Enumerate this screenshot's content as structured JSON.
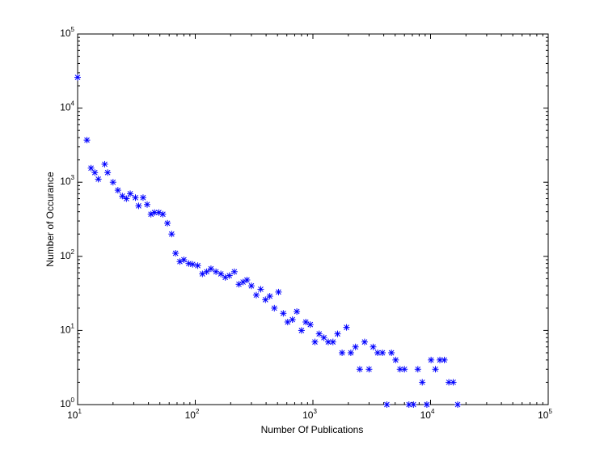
{
  "chart_data": {
    "type": "scatter",
    "title": "",
    "xlabel": "Number Of Publications",
    "ylabel": "Number of Occurance",
    "xscale": "log",
    "yscale": "log",
    "xlim": [
      10,
      100000
    ],
    "ylim": [
      1,
      100000
    ],
    "grid": false,
    "legend": null,
    "marker": "asterisk",
    "marker_color": "#0000ff",
    "x_ticks": [
      {
        "base": "10",
        "exp": "1"
      },
      {
        "base": "10",
        "exp": "2"
      },
      {
        "base": "10",
        "exp": "3"
      },
      {
        "base": "10",
        "exp": "4"
      },
      {
        "base": "10",
        "exp": "5"
      }
    ],
    "y_ticks": [
      {
        "base": "10",
        "exp": "0"
      },
      {
        "base": "10",
        "exp": "1"
      },
      {
        "base": "10",
        "exp": "2"
      },
      {
        "base": "10",
        "exp": "3"
      },
      {
        "base": "10",
        "exp": "4"
      },
      {
        "base": "10",
        "exp": "5"
      }
    ],
    "points": [
      [
        10,
        26000
      ],
      [
        12,
        3700
      ],
      [
        13,
        1550
      ],
      [
        14,
        1350
      ],
      [
        15,
        1100
      ],
      [
        17,
        1750
      ],
      [
        18,
        1350
      ],
      [
        20,
        1000
      ],
      [
        22,
        780
      ],
      [
        24,
        650
      ],
      [
        26,
        600
      ],
      [
        28,
        700
      ],
      [
        31,
        620
      ],
      [
        33,
        480
      ],
      [
        36,
        620
      ],
      [
        39,
        500
      ],
      [
        42,
        370
      ],
      [
        45,
        390
      ],
      [
        49,
        390
      ],
      [
        53,
        370
      ],
      [
        58,
        280
      ],
      [
        63,
        200
      ],
      [
        68,
        110
      ],
      [
        74,
        85
      ],
      [
        80,
        90
      ],
      [
        88,
        80
      ],
      [
        95,
        78
      ],
      [
        105,
        75
      ],
      [
        115,
        58
      ],
      [
        125,
        62
      ],
      [
        136,
        68
      ],
      [
        150,
        62
      ],
      [
        165,
        58
      ],
      [
        180,
        52
      ],
      [
        195,
        55
      ],
      [
        215,
        62
      ],
      [
        235,
        42
      ],
      [
        255,
        45
      ],
      [
        275,
        48
      ],
      [
        300,
        40
      ],
      [
        330,
        30
      ],
      [
        360,
        36
      ],
      [
        395,
        26
      ],
      [
        430,
        29
      ],
      [
        470,
        20
      ],
      [
        510,
        33
      ],
      [
        560,
        17
      ],
      [
        610,
        13
      ],
      [
        670,
        14
      ],
      [
        730,
        18
      ],
      [
        800,
        10
      ],
      [
        870,
        13
      ],
      [
        950,
        12
      ],
      [
        1040,
        7
      ],
      [
        1130,
        9
      ],
      [
        1240,
        8
      ],
      [
        1350,
        7
      ],
      [
        1480,
        7
      ],
      [
        1620,
        9
      ],
      [
        1770,
        5
      ],
      [
        1930,
        11
      ],
      [
        2100,
        5
      ],
      [
        2300,
        6
      ],
      [
        2500,
        3
      ],
      [
        2750,
        7
      ],
      [
        3000,
        3
      ],
      [
        3250,
        6
      ],
      [
        3550,
        5
      ],
      [
        3900,
        5
      ],
      [
        4250,
        1
      ],
      [
        4650,
        5
      ],
      [
        5050,
        4
      ],
      [
        5500,
        3
      ],
      [
        6000,
        3
      ],
      [
        6550,
        1
      ],
      [
        7150,
        1
      ],
      [
        7800,
        3
      ],
      [
        8500,
        2
      ],
      [
        9300,
        1
      ],
      [
        10100,
        4
      ],
      [
        11000,
        3
      ],
      [
        12000,
        4
      ],
      [
        13100,
        4
      ],
      [
        14300,
        2
      ],
      [
        15600,
        2
      ],
      [
        17000,
        1
      ]
    ]
  }
}
